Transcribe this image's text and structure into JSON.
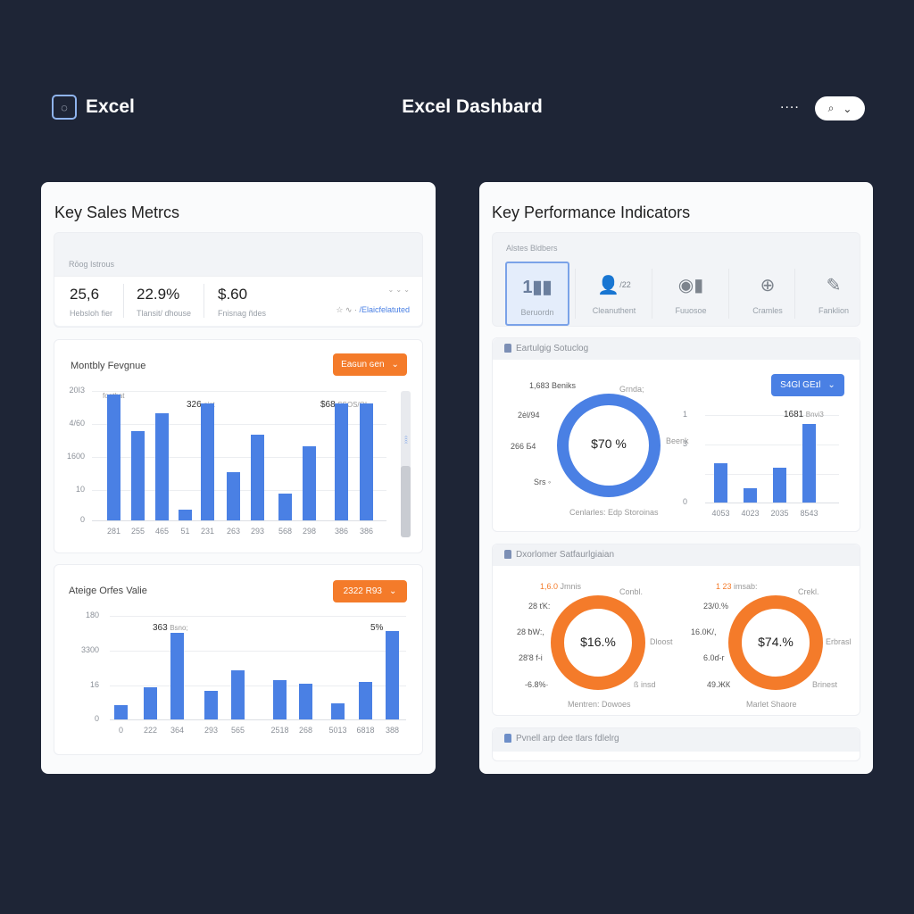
{
  "header": {
    "brand_icon": "excel-app-icon",
    "brand": "Excel",
    "title": "Excel Dashbard",
    "more": "....",
    "search_icon": "search-icon",
    "chevron": "⌄"
  },
  "left_panel": {
    "title": "Key Sales Metrcs",
    "summary": {
      "label": "Rōog Istrous",
      "stats": [
        {
          "value": "25,6",
          "label": "Hebsloh fier"
        },
        {
          "value": "22.9%",
          "label": "Tlansit/ ɗhouse"
        },
        {
          "value": "$.60",
          "label": "Fnisnag ñdes"
        }
      ],
      "corner_chevrons": "⌄ ⌄ ⌄",
      "link_prefix": "☆ ∿ ·",
      "link": "/Elaicfelatuted"
    },
    "monthly_revenue": {
      "title": "Montbly Fevgnue",
      "dropdown": "Eaɢun ɢen",
      "corner_label": "footbat",
      "annotations": [
        {
          "value": "326",
          "text": "nist"
        },
        {
          "value": "$68",
          "text": "SSOS/OI"
        }
      ]
    },
    "avg_order_value": {
      "title": "Ateige Orfes Valie",
      "dropdown": "2322 R93",
      "annotations": [
        {
          "value": "363",
          "text": "Bsno;"
        },
        {
          "value": "5%",
          "text": ""
        }
      ]
    }
  },
  "right_panel": {
    "title": "Key Performance Indicators",
    "kpi_section_label": "Alstes Bldbers",
    "kpi_tabs": [
      {
        "label": "Beruordn",
        "icon": "bar-chart-icon",
        "glyph": "1▮▮",
        "active": true
      },
      {
        "label": "Cleanuthent",
        "icon": "user-icon",
        "glyph": "👤",
        "sup": "/22",
        "active": false
      },
      {
        "label": "Fuuosoe",
        "icon": "person-target-icon",
        "glyph": "◉▮",
        "active": false
      },
      {
        "label": "Cramles",
        "icon": "globe-icon",
        "glyph": "⊕",
        "active": false
      },
      {
        "label": "Fanklion",
        "icon": "wand-icon",
        "glyph": "✎",
        "active": false
      }
    ],
    "ordering": {
      "title": "Eartulgig Sotuclog",
      "dropdown": "S4Gl GEɪl",
      "donut_center": "$70 %",
      "donut_labels": {
        "tl": "1,683 Beniks",
        "l1": "2ėl/94",
        "l2": "266 Ƃ4",
        "bl": "Srs ◦",
        "tr": "Grnda;",
        "r": "Beenk"
      },
      "donut_caption": "Cenlarles: Edp Storoinas",
      "bar_annotation": {
        "value": "1681",
        "text": "Bnvi3"
      }
    },
    "satisfaction": {
      "title": "Dxorlomer Satfaurlgiaian",
      "donut1": {
        "center": "$16.%",
        "labels": {
          "tl": "1,6.0",
          "tl_text": "Jmnis",
          "l1": "28 ťK:",
          "l2": "28 ƀW:,",
          "l3": "28'8 f-i",
          "bl": "-6.8%·",
          "tr": "Conbl.",
          "r": "Dloost",
          "br": "ß insd"
        },
        "caption": "Mentren: Dowoes"
      },
      "donut2": {
        "center": "$74.%",
        "labels": {
          "tl": "1 23",
          "tl_text": "imsab:",
          "l1": "23/0.%",
          "l2": "16.0K/,",
          "l3": "6.0ɗ-r",
          "bl": "49.ЖК",
          "tr": "Crekl.",
          "r": "Erbrasl",
          "br": "Brinest"
        },
        "caption": "Marlet Shaore"
      }
    },
    "footer_section": {
      "title": "Pvnell arp dee tlars fdlelrg"
    }
  },
  "colors": {
    "background": "#1e2536",
    "accent_blue": "#4a80e4",
    "accent_orange": "#f47b2a",
    "panel": "#fafbfc"
  },
  "chart_data": [
    {
      "type": "bar",
      "title": "Montbly Fevgnue",
      "categories": [
        "281",
        "255",
        "465",
        "51",
        "231",
        "263",
        "293",
        "568",
        "298",
        "386",
        "386"
      ],
      "values": [
        1950,
        1380,
        1660,
        170,
        1810,
        750,
        1330,
        420,
        1150,
        1800,
        1810
      ],
      "ytick_labels": [
        "0",
        "10",
        "1600",
        "4/60",
        "20I3"
      ],
      "ylim": [
        0,
        2000
      ],
      "grid": true
    },
    {
      "type": "bar",
      "title": "Ateige Orfes Valie",
      "categories": [
        "0",
        "222",
        "364",
        "293",
        "565",
        "2518",
        "268",
        "5013",
        "6818",
        "388"
      ],
      "values": [
        25,
        56,
        151,
        49,
        86,
        68,
        62,
        28,
        65,
        154
      ],
      "ytick_labels": [
        "0",
        "16",
        "3300",
        "180"
      ],
      "ylim": [
        0,
        180
      ],
      "grid": true
    },
    {
      "type": "bar",
      "title": "Eartulgig Sotuclog",
      "categories": [
        "4053",
        "4023",
        "2035",
        "8543"
      ],
      "values": [
        0.45,
        0.16,
        0.4,
        0.9
      ],
      "ytick_labels": [
        "0",
        "3",
        "1"
      ],
      "ylim": [
        0,
        1
      ],
      "grid": true
    },
    {
      "type": "pie",
      "title": "Eartulgig Sotuclog",
      "center_label": "$70 %",
      "values": [
        100
      ]
    },
    {
      "type": "pie",
      "title": "Mentren: Dowoes",
      "center_label": "$16.%",
      "values": [
        100
      ]
    },
    {
      "type": "pie",
      "title": "Marlet Shaore",
      "center_label": "$74.%",
      "values": [
        100
      ]
    }
  ]
}
